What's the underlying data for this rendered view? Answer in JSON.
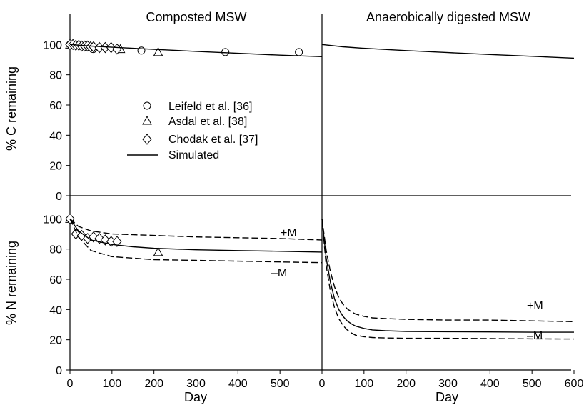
{
  "chart_data": [
    {
      "type": "scatter",
      "panel": "top-left",
      "title": "Composted MSW",
      "ylabel": "% C remaining",
      "xlabel": "",
      "xlim": [
        0,
        600
      ],
      "ylim": [
        0,
        120
      ],
      "yticks": [
        0,
        20,
        40,
        60,
        80,
        100
      ],
      "xticks": [],
      "legend": {
        "position": "center-left",
        "entries": [
          {
            "label": "Leifeld et al. [36]",
            "marker": "circle"
          },
          {
            "label": "Asdal et al. [38]",
            "marker": "triangle"
          },
          {
            "label": "Chodak et al. [37]",
            "marker": "diamond"
          },
          {
            "label": "Simulated",
            "marker": "line"
          }
        ]
      },
      "series": [
        {
          "name": "Leifeld et al. [36]",
          "marker": "circle",
          "x": [
            0,
            3,
            7,
            55,
            170,
            370,
            545
          ],
          "y": [
            100,
            100,
            100,
            97,
            96,
            95,
            95
          ]
        },
        {
          "name": "Asdal et al. [38]",
          "marker": "triangle",
          "x": [
            0,
            120,
            210
          ],
          "y": [
            100,
            97,
            95
          ]
        },
        {
          "name": "Chodak et al. [37]",
          "marker": "diamond",
          "x": [
            0,
            7,
            14,
            21,
            28,
            35,
            42,
            49,
            56,
            70,
            84,
            98,
            112
          ],
          "y": [
            100,
            100,
            99.5,
            99.5,
            99,
            99,
            99,
            98.5,
            98.5,
            98,
            98,
            98,
            97
          ]
        },
        {
          "name": "Simulated",
          "marker": "line",
          "x": [
            0,
            50,
            100,
            200,
            300,
            400,
            500,
            600
          ],
          "y": [
            100,
            99,
            98.2,
            96.8,
            95.5,
            94.2,
            93,
            92
          ]
        }
      ]
    },
    {
      "type": "line",
      "panel": "top-right",
      "title": "Anaerobically digested MSW",
      "xlim": [
        0,
        600
      ],
      "ylim": [
        0,
        120
      ],
      "series": [
        {
          "name": "Simulated",
          "x": [
            0,
            50,
            100,
            200,
            300,
            400,
            500,
            600
          ],
          "y": [
            100,
            98.5,
            97.5,
            96,
            94.7,
            93.4,
            92.2,
            91
          ]
        }
      ]
    },
    {
      "type": "scatter",
      "panel": "bottom-left",
      "ylabel": "% N remaining",
      "xlabel": "Day",
      "xlim": [
        0,
        600
      ],
      "ylim": [
        0,
        120
      ],
      "yticks": [
        0,
        20,
        40,
        60,
        80,
        100
      ],
      "xticks": [
        0,
        100,
        200,
        300,
        400,
        500
      ],
      "annotations": [
        "+M",
        "–M"
      ],
      "series": [
        {
          "name": "Asdal et al. [38]",
          "marker": "triangle",
          "x": [
            0,
            210
          ],
          "y": [
            100,
            78
          ]
        },
        {
          "name": "Chodak et al. [37]",
          "marker": "diamond",
          "x": [
            0,
            14,
            28,
            42,
            56,
            70,
            84,
            98,
            112
          ],
          "y": [
            100,
            90,
            89,
            87,
            88,
            87,
            86,
            85,
            85
          ]
        },
        {
          "name": "+M",
          "style": "dashed",
          "x": [
            0,
            20,
            50,
            100,
            200,
            300,
            400,
            500,
            600
          ],
          "y": [
            100,
            95,
            92,
            90,
            89,
            88,
            87.5,
            87,
            86
          ]
        },
        {
          "name": "Simulated",
          "style": "solid",
          "x": [
            0,
            20,
            50,
            100,
            150,
            200,
            300,
            400,
            500,
            600
          ],
          "y": [
            100,
            92,
            86,
            83,
            81.5,
            80.5,
            79.5,
            79,
            78.5,
            78
          ]
        },
        {
          "name": "–M",
          "style": "dashed",
          "x": [
            0,
            20,
            50,
            100,
            150,
            200,
            300,
            400,
            500,
            600
          ],
          "y": [
            100,
            88,
            79,
            75,
            74,
            73,
            72.5,
            72,
            71.5,
            71
          ]
        }
      ]
    },
    {
      "type": "line",
      "panel": "bottom-right",
      "xlabel": "Day",
      "xlim": [
        0,
        600
      ],
      "ylim": [
        0,
        120
      ],
      "xticks": [
        0,
        100,
        200,
        300,
        400,
        500,
        600
      ],
      "annotations": [
        "+M",
        "–M"
      ],
      "series": [
        {
          "name": "+M",
          "style": "dashed",
          "x": [
            0,
            10,
            20,
            30,
            40,
            50,
            60,
            70,
            80,
            100,
            120,
            150,
            200,
            300,
            400,
            500,
            600
          ],
          "y": [
            100,
            79,
            65,
            55,
            48,
            43.5,
            40.5,
            38.5,
            37,
            35.5,
            34.5,
            34,
            33.5,
            33,
            33,
            32.5,
            32
          ]
        },
        {
          "name": "Simulated",
          "style": "solid",
          "x": [
            0,
            10,
            20,
            30,
            40,
            50,
            60,
            70,
            80,
            100,
            120,
            150,
            200,
            300,
            400,
            500,
            600
          ],
          "y": [
            100,
            74,
            58,
            47,
            40,
            35.5,
            32.5,
            30.5,
            29,
            27.5,
            26.5,
            26,
            25.5,
            25.3,
            25.2,
            25,
            25
          ]
        },
        {
          "name": "–M",
          "style": "dashed",
          "x": [
            0,
            10,
            20,
            30,
            40,
            50,
            60,
            70,
            80,
            100,
            120,
            150,
            200,
            300,
            400,
            500,
            600
          ],
          "y": [
            100,
            69,
            52,
            41,
            34,
            29.5,
            26.5,
            24.5,
            23,
            22,
            21.5,
            21.2,
            21,
            21,
            20.8,
            20.6,
            20.5
          ]
        }
      ]
    }
  ],
  "labels": {
    "title_left": "Composted MSW",
    "title_right": "Anaerobically digested MSW",
    "ylabel_top": "% C remaining",
    "ylabel_bottom": "% N remaining",
    "xlabel": "Day",
    "ann_bl_plus": "+M",
    "ann_bl_minus": "–M",
    "ann_br_plus": "+M",
    "ann_br_minus": "–M",
    "legend_leifeld": "Leifeld et al. [36]",
    "legend_asdal": "Asdal et al. [38]",
    "legend_chodak": "Chodak et al. [37]",
    "legend_sim": "Simulated"
  }
}
